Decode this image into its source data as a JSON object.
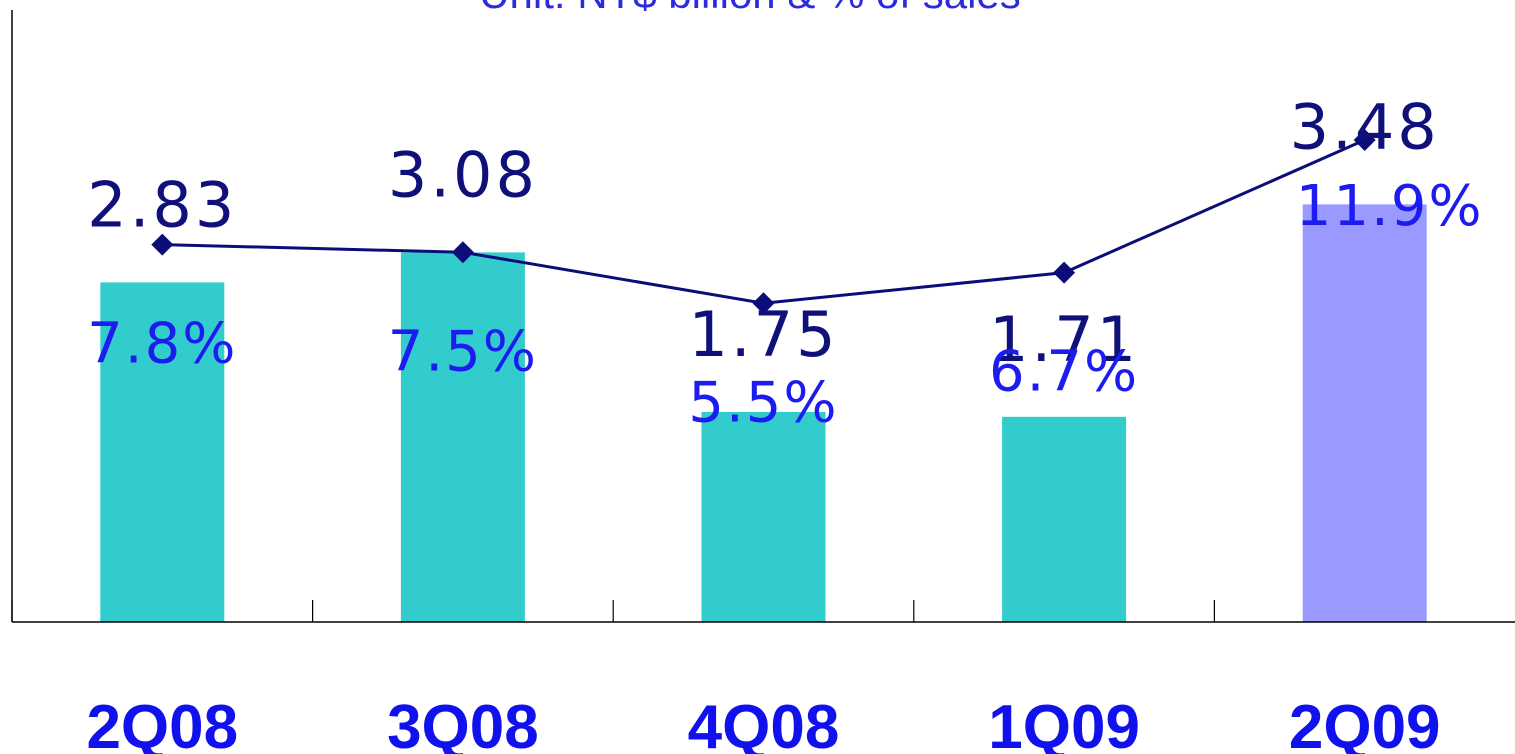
{
  "chart_data": {
    "type": "bar",
    "title": "Unit: NT$ billion & % of sales",
    "categories": [
      "2Q08",
      "3Q08",
      "4Q08",
      "1Q09",
      "2Q09"
    ],
    "series": [
      {
        "name": "",
        "kind": "bar",
        "unit": "NT$ billion",
        "values": [
          2.83,
          3.08,
          1.75,
          1.71,
          3.48
        ],
        "labels": [
          "2.83",
          "3.08",
          "1.75",
          "1.71",
          "3.48"
        ],
        "colors": [
          "#33cccc",
          "#33cccc",
          "#33cccc",
          "#33cccc",
          "#9999ff"
        ]
      },
      {
        "name": "",
        "kind": "line",
        "unit": "% of sales",
        "values": [
          7.8,
          7.5,
          5.5,
          6.7,
          11.9
        ],
        "labels": [
          "7.8%",
          "7.5%",
          "5.5%",
          "6.7%",
          "11.9%"
        ],
        "color": "#0d0d7a"
      }
    ],
    "ylim_bar": [
      0,
      5.1
    ],
    "ylim_line": [
      -7,
      17
    ],
    "grid": false,
    "legend": "none"
  }
}
